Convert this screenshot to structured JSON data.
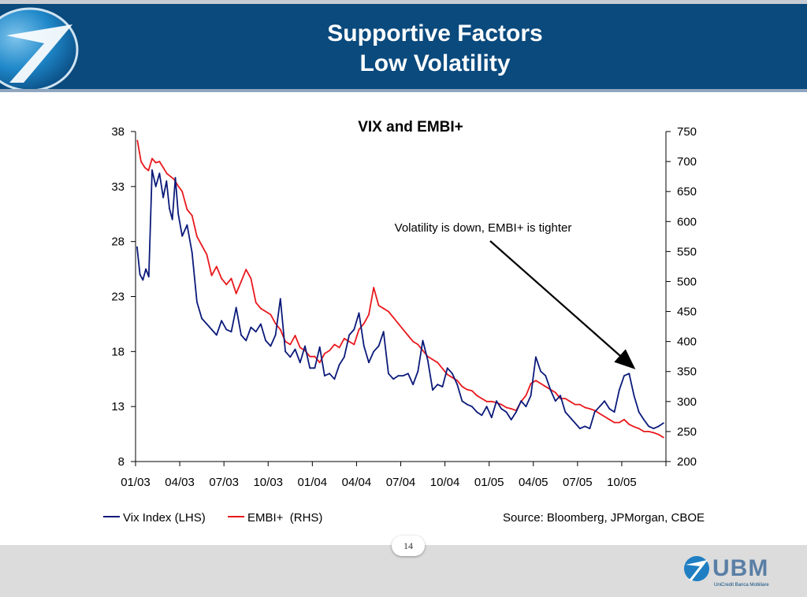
{
  "slide": {
    "title_line1": "Supportive Factors",
    "title_line2": "Low Volatility",
    "page_number": "14",
    "logo_text": "UBM",
    "logo_subtext": "UniCredit Banca Mobiliare"
  },
  "colors": {
    "header_band": "#0a4a7d",
    "vix_series": "#0b1a7a",
    "embi_series": "#e8191d"
  },
  "chart_data": {
    "type": "line",
    "title": "VIX and EMBI+",
    "x_tick_labels": [
      "01/03",
      "04/03",
      "07/03",
      "10/03",
      "01/04",
      "04/04",
      "07/04",
      "10/04",
      "01/05",
      "04/05",
      "07/05",
      "10/05"
    ],
    "x_range": [
      "01/03",
      "01/06"
    ],
    "y_left": {
      "range": [
        8,
        38
      ],
      "ticks": [
        8,
        13,
        18,
        23,
        28,
        33,
        38
      ]
    },
    "y_right": {
      "range": [
        200,
        750
      ],
      "ticks": [
        200,
        250,
        300,
        350,
        400,
        450,
        500,
        550,
        600,
        650,
        700,
        750
      ]
    },
    "grid": false,
    "legend_position": "bottom-left",
    "source_note": "Source: Bloomberg, JPMorgan, CBOE",
    "annotation": "Volatility is down, EMBI+ is tighter",
    "series": [
      {
        "name": "Vix Index (LHS)",
        "axis": "left",
        "points": [
          [
            "01/03",
            27.5
          ],
          [
            "01/03",
            25.0
          ],
          [
            "01/03",
            24.5
          ],
          [
            "01/03",
            25.5
          ],
          [
            "01/03",
            24.8
          ],
          [
            "02/03",
            34.5
          ],
          [
            "02/03",
            33.0
          ],
          [
            "02/03",
            34.2
          ],
          [
            "02/03",
            32.0
          ],
          [
            "03/03",
            33.5
          ],
          [
            "03/03",
            31.0
          ],
          [
            "03/03",
            30.0
          ],
          [
            "03/03",
            33.8
          ],
          [
            "03/03",
            30.5
          ],
          [
            "04/03",
            28.5
          ],
          [
            "04/03",
            29.5
          ],
          [
            "04/03",
            27.0
          ],
          [
            "05/03",
            22.5
          ],
          [
            "05/03",
            21.0
          ],
          [
            "05/03",
            20.5
          ],
          [
            "06/03",
            20.0
          ],
          [
            "06/03",
            19.5
          ],
          [
            "06/03",
            20.8
          ],
          [
            "07/03",
            20.0
          ],
          [
            "07/03",
            19.8
          ],
          [
            "07/03",
            22.0
          ],
          [
            "08/03",
            19.5
          ],
          [
            "08/03",
            19.0
          ],
          [
            "08/03",
            20.2
          ],
          [
            "09/03",
            19.8
          ],
          [
            "09/03",
            20.5
          ],
          [
            "09/03",
            19.0
          ],
          [
            "10/03",
            18.5
          ],
          [
            "10/03",
            19.5
          ],
          [
            "10/03",
            22.8
          ],
          [
            "11/03",
            18.0
          ],
          [
            "11/03",
            17.5
          ],
          [
            "11/03",
            18.2
          ],
          [
            "12/03",
            17.0
          ],
          [
            "12/03",
            18.5
          ],
          [
            "12/03",
            16.5
          ],
          [
            "01/04",
            16.5
          ],
          [
            "01/04",
            18.4
          ],
          [
            "01/04",
            15.8
          ],
          [
            "02/04",
            16.0
          ],
          [
            "02/04",
            15.5
          ],
          [
            "02/04",
            16.8
          ],
          [
            "03/04",
            17.5
          ],
          [
            "03/04",
            19.5
          ],
          [
            "03/04",
            20.0
          ],
          [
            "04/04",
            21.5
          ],
          [
            "04/04",
            18.5
          ],
          [
            "04/04",
            17.0
          ],
          [
            "05/04",
            18.0
          ],
          [
            "05/04",
            18.5
          ],
          [
            "05/04",
            19.8
          ],
          [
            "06/04",
            16.0
          ],
          [
            "06/04",
            15.5
          ],
          [
            "06/04",
            15.8
          ],
          [
            "07/04",
            15.8
          ],
          [
            "07/04",
            16.0
          ],
          [
            "07/04",
            15.0
          ],
          [
            "08/04",
            16.2
          ],
          [
            "08/04",
            19.0
          ],
          [
            "08/04",
            17.2
          ],
          [
            "09/04",
            14.5
          ],
          [
            "09/04",
            15.0
          ],
          [
            "09/04",
            14.8
          ],
          [
            "10/04",
            16.5
          ],
          [
            "10/04",
            16.0
          ],
          [
            "10/04",
            15.0
          ],
          [
            "11/04",
            13.5
          ],
          [
            "11/04",
            13.2
          ],
          [
            "11/04",
            13.0
          ],
          [
            "12/04",
            12.5
          ],
          [
            "12/04",
            12.2
          ],
          [
            "12/04",
            13.0
          ],
          [
            "01/05",
            12.0
          ],
          [
            "01/05",
            13.5
          ],
          [
            "01/05",
            12.8
          ],
          [
            "02/05",
            12.5
          ],
          [
            "02/05",
            11.8
          ],
          [
            "02/05",
            12.5
          ],
          [
            "03/05",
            13.5
          ],
          [
            "03/05",
            13.0
          ],
          [
            "03/05",
            14.0
          ],
          [
            "04/05",
            17.5
          ],
          [
            "04/05",
            16.2
          ],
          [
            "04/05",
            15.8
          ],
          [
            "05/05",
            14.5
          ],
          [
            "05/05",
            13.5
          ],
          [
            "05/05",
            14.0
          ],
          [
            "06/05",
            12.5
          ],
          [
            "06/05",
            12.0
          ],
          [
            "06/05",
            11.5
          ],
          [
            "07/05",
            11.0
          ],
          [
            "07/05",
            11.2
          ],
          [
            "07/05",
            11.0
          ],
          [
            "08/05",
            12.5
          ],
          [
            "08/05",
            13.0
          ],
          [
            "08/05",
            13.5
          ],
          [
            "09/05",
            12.8
          ],
          [
            "09/05",
            12.5
          ],
          [
            "09/05",
            14.5
          ],
          [
            "10/05",
            15.8
          ],
          [
            "10/05",
            16.0
          ],
          [
            "10/05",
            14.0
          ],
          [
            "11/05",
            12.5
          ],
          [
            "11/05",
            11.8
          ],
          [
            "11/05",
            11.2
          ],
          [
            "12/05",
            11.0
          ],
          [
            "12/05",
            11.2
          ],
          [
            "12/05",
            11.5
          ]
        ]
      },
      {
        "name": "EMBI+  (RHS)",
        "axis": "right",
        "points": [
          [
            "01/03",
            735
          ],
          [
            "01/03",
            700
          ],
          [
            "01/03",
            690
          ],
          [
            "01/03",
            685
          ],
          [
            "02/03",
            705
          ],
          [
            "02/03",
            698
          ],
          [
            "02/03",
            700
          ],
          [
            "02/03",
            690
          ],
          [
            "03/03",
            680
          ],
          [
            "03/03",
            675
          ],
          [
            "03/03",
            670
          ],
          [
            "03/03",
            660
          ],
          [
            "04/03",
            650
          ],
          [
            "04/03",
            620
          ],
          [
            "04/03",
            610
          ],
          [
            "05/03",
            575
          ],
          [
            "05/03",
            560
          ],
          [
            "05/03",
            545
          ],
          [
            "06/03",
            510
          ],
          [
            "06/03",
            525
          ],
          [
            "06/03",
            505
          ],
          [
            "07/03",
            495
          ],
          [
            "07/03",
            505
          ],
          [
            "07/03",
            480
          ],
          [
            "08/03",
            500
          ],
          [
            "08/03",
            520
          ],
          [
            "08/03",
            505
          ],
          [
            "09/03",
            465
          ],
          [
            "09/03",
            455
          ],
          [
            "09/03",
            450
          ],
          [
            "10/03",
            445
          ],
          [
            "10/03",
            430
          ],
          [
            "10/03",
            420
          ],
          [
            "11/03",
            400
          ],
          [
            "11/03",
            395
          ],
          [
            "11/03",
            410
          ],
          [
            "12/03",
            390
          ],
          [
            "12/03",
            385
          ],
          [
            "12/03",
            375
          ],
          [
            "01/04",
            375
          ],
          [
            "01/04",
            365
          ],
          [
            "01/04",
            380
          ],
          [
            "02/04",
            385
          ],
          [
            "02/04",
            395
          ],
          [
            "02/04",
            390
          ],
          [
            "03/04",
            405
          ],
          [
            "03/04",
            400
          ],
          [
            "03/04",
            395
          ],
          [
            "04/04",
            420
          ],
          [
            "04/04",
            430
          ],
          [
            "04/04",
            445
          ],
          [
            "05/04",
            490
          ],
          [
            "05/04",
            460
          ],
          [
            "05/04",
            455
          ],
          [
            "06/04",
            450
          ],
          [
            "06/04",
            440
          ],
          [
            "06/04",
            430
          ],
          [
            "07/04",
            420
          ],
          [
            "07/04",
            410
          ],
          [
            "07/04",
            400
          ],
          [
            "08/04",
            395
          ],
          [
            "08/04",
            385
          ],
          [
            "08/04",
            375
          ],
          [
            "09/04",
            370
          ],
          [
            "09/04",
            365
          ],
          [
            "09/04",
            355
          ],
          [
            "10/04",
            345
          ],
          [
            "10/04",
            340
          ],
          [
            "10/04",
            335
          ],
          [
            "11/04",
            325
          ],
          [
            "11/04",
            320
          ],
          [
            "11/04",
            318
          ],
          [
            "12/04",
            310
          ],
          [
            "12/04",
            305
          ],
          [
            "12/04",
            300
          ],
          [
            "01/05",
            300
          ],
          [
            "01/05",
            298
          ],
          [
            "01/05",
            295
          ],
          [
            "02/05",
            290
          ],
          [
            "02/05",
            288
          ],
          [
            "02/05",
            285
          ],
          [
            "03/05",
            300
          ],
          [
            "03/05",
            310
          ],
          [
            "03/05",
            330
          ],
          [
            "04/05",
            335
          ],
          [
            "04/05",
            330
          ],
          [
            "04/05",
            325
          ],
          [
            "05/05",
            320
          ],
          [
            "05/05",
            315
          ],
          [
            "05/05",
            305
          ],
          [
            "06/05",
            305
          ],
          [
            "06/05",
            300
          ],
          [
            "06/05",
            295
          ],
          [
            "07/05",
            295
          ],
          [
            "07/05",
            290
          ],
          [
            "07/05",
            288
          ],
          [
            "08/05",
            285
          ],
          [
            "08/05",
            280
          ],
          [
            "08/05",
            275
          ],
          [
            "09/05",
            270
          ],
          [
            "09/05",
            265
          ],
          [
            "09/05",
            265
          ],
          [
            "10/05",
            270
          ],
          [
            "10/05",
            262
          ],
          [
            "10/05",
            258
          ],
          [
            "11/05",
            255
          ],
          [
            "11/05",
            250
          ],
          [
            "11/05",
            250
          ],
          [
            "12/05",
            248
          ],
          [
            "12/05",
            245
          ],
          [
            "12/05",
            240
          ]
        ]
      }
    ]
  }
}
